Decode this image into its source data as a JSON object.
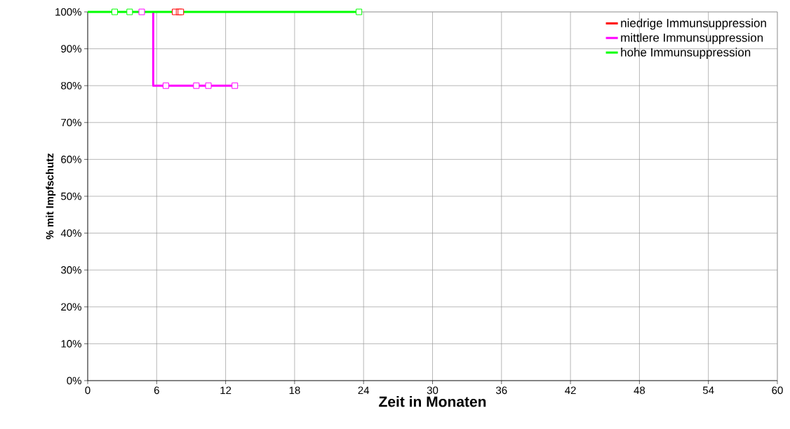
{
  "chart_data": {
    "type": "step",
    "xlabel": "Zeit in Monaten",
    "ylabel": "% mit Impfschutz",
    "xlim": [
      0,
      60
    ],
    "xticks": [
      0,
      6,
      12,
      18,
      24,
      30,
      36,
      42,
      48,
      54,
      60
    ],
    "ylim": [
      0,
      100
    ],
    "yticks": [
      {
        "value": 0,
        "label": "0%"
      },
      {
        "value": 10,
        "label": "10%"
      },
      {
        "value": 20,
        "label": "20%"
      },
      {
        "value": 30,
        "label": "30%"
      },
      {
        "value": 40,
        "label": "40%"
      },
      {
        "value": 50,
        "label": "50%"
      },
      {
        "value": 60,
        "label": "60%"
      },
      {
        "value": 70,
        "label": "70%"
      },
      {
        "value": 80,
        "label": "80%"
      },
      {
        "value": 90,
        "label": "90%"
      },
      {
        "value": 100,
        "label": "100%"
      }
    ],
    "grid": true,
    "legend": "top right",
    "marker": "none",
    "line_style": "solid",
    "series": [
      {
        "name": "niedrige Immunsuppression",
        "type": "scatter",
        "marker": "square",
        "color": "#ff0000",
        "x": [
          7.6,
          7.95,
          8.1
        ],
        "values": [
          100,
          100,
          100
        ]
      },
      {
        "name": "mittlere Immunsuppression",
        "color": "#ff00ff",
        "x": [
          5.7,
          5.7,
          12.8
        ],
        "values": [
          100,
          80,
          80
        ]
      },
      {
        "name": "hohe Immunsuppression",
        "color": "#00ff00",
        "x": [
          0,
          23.6
        ],
        "values": [
          100,
          100
        ]
      },
      {
        "type": "scatter",
        "marker": "square",
        "color": "#ff00ff",
        "x": [
          4.7,
          6.8,
          9.45,
          10.5,
          12.8
        ],
        "values": [
          100,
          80,
          80,
          80,
          80
        ]
      },
      {
        "type": "scatter",
        "marker": "square",
        "color": "#00ff00",
        "x": [
          2.35,
          3.65,
          23.6
        ],
        "values": [
          100,
          100,
          100
        ]
      }
    ]
  }
}
